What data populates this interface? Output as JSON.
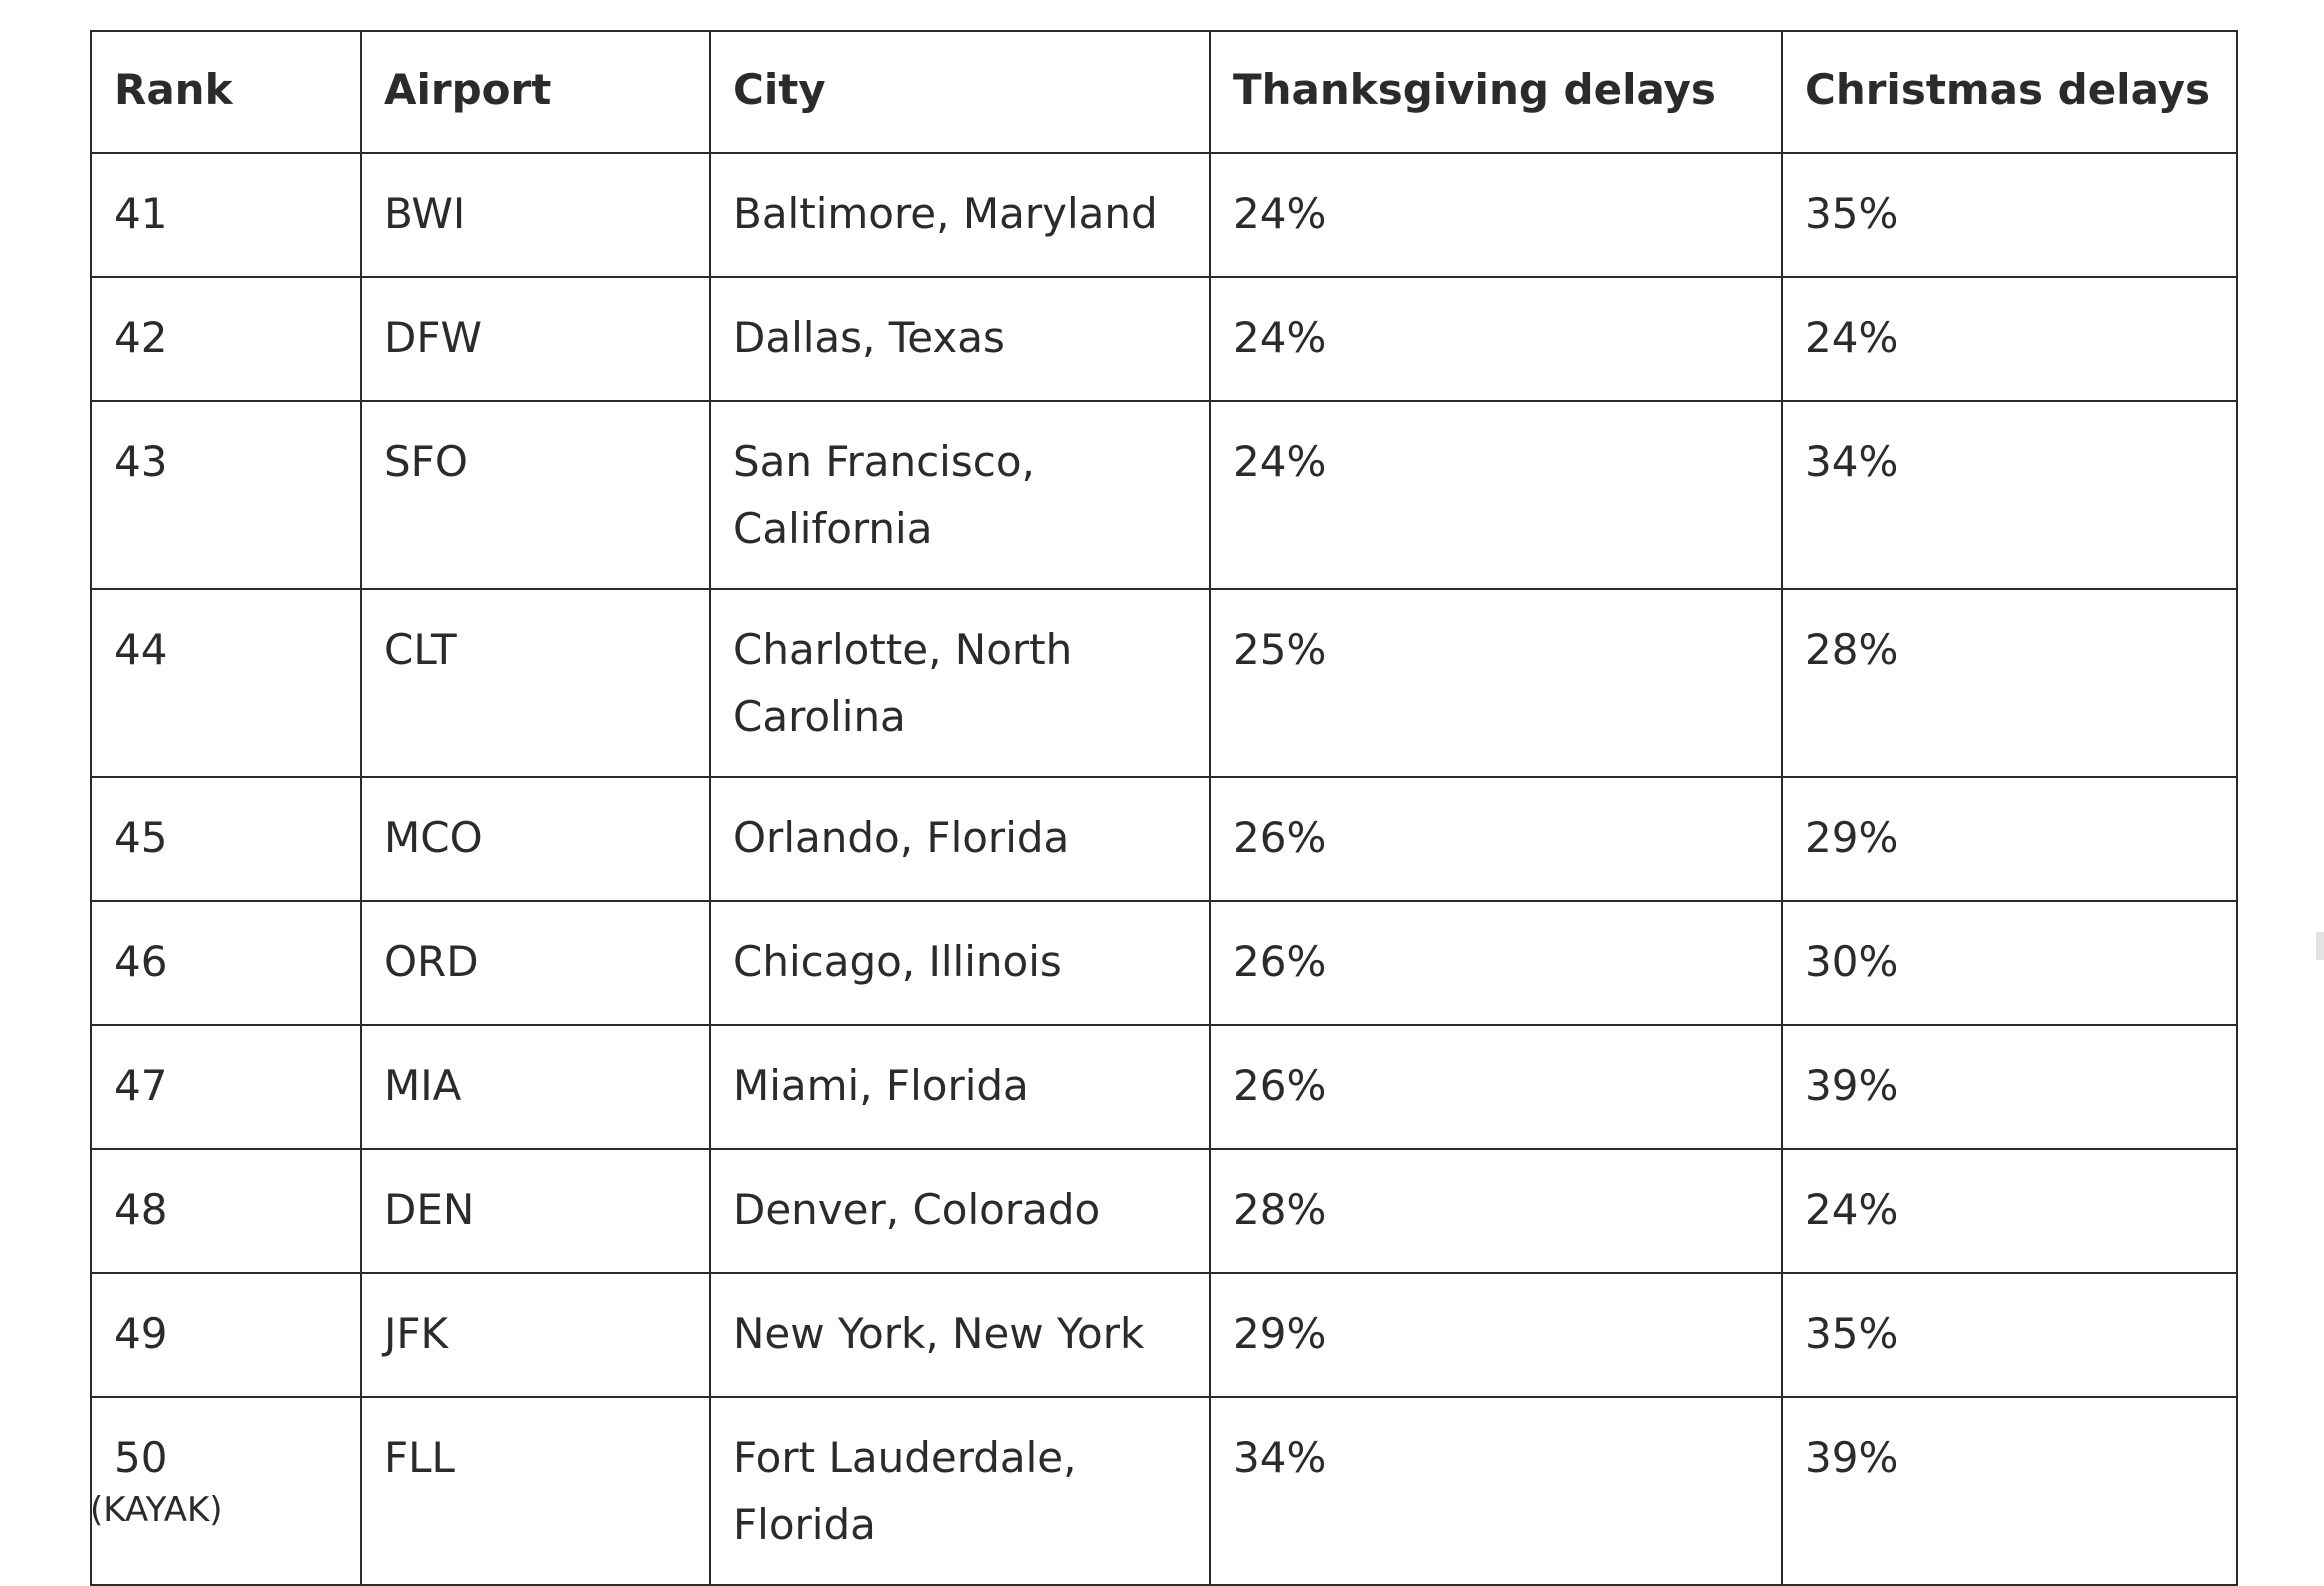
{
  "table": {
    "headers": [
      "Rank",
      "Airport",
      "City",
      "Thanksgiving delays",
      "Christmas delays"
    ],
    "rows": [
      [
        "41",
        "BWI",
        "Baltimore, Maryland",
        "24%",
        "35%"
      ],
      [
        "42",
        "DFW",
        "Dallas, Texas",
        "24%",
        "24%"
      ],
      [
        "43",
        "SFO",
        "San Francisco, California",
        "24%",
        "34%"
      ],
      [
        "44",
        "CLT",
        "Charlotte, North Carolina",
        "25%",
        "28%"
      ],
      [
        "45",
        "MCO",
        "Orlando, Florida",
        "26%",
        "29%"
      ],
      [
        "46",
        "ORD",
        "Chicago, Illinois",
        "26%",
        "30%"
      ],
      [
        "47",
        "MIA",
        "Miami, Florida",
        "26%",
        "39%"
      ],
      [
        "48",
        "DEN",
        "Denver, Colorado",
        "28%",
        "24%"
      ],
      [
        "49",
        "JFK",
        "New York, New York",
        "29%",
        "35%"
      ],
      [
        "50",
        "FLL",
        "Fort Lauderdale, Florida",
        "34%",
        "39%"
      ]
    ]
  },
  "source": "(KAYAK)"
}
